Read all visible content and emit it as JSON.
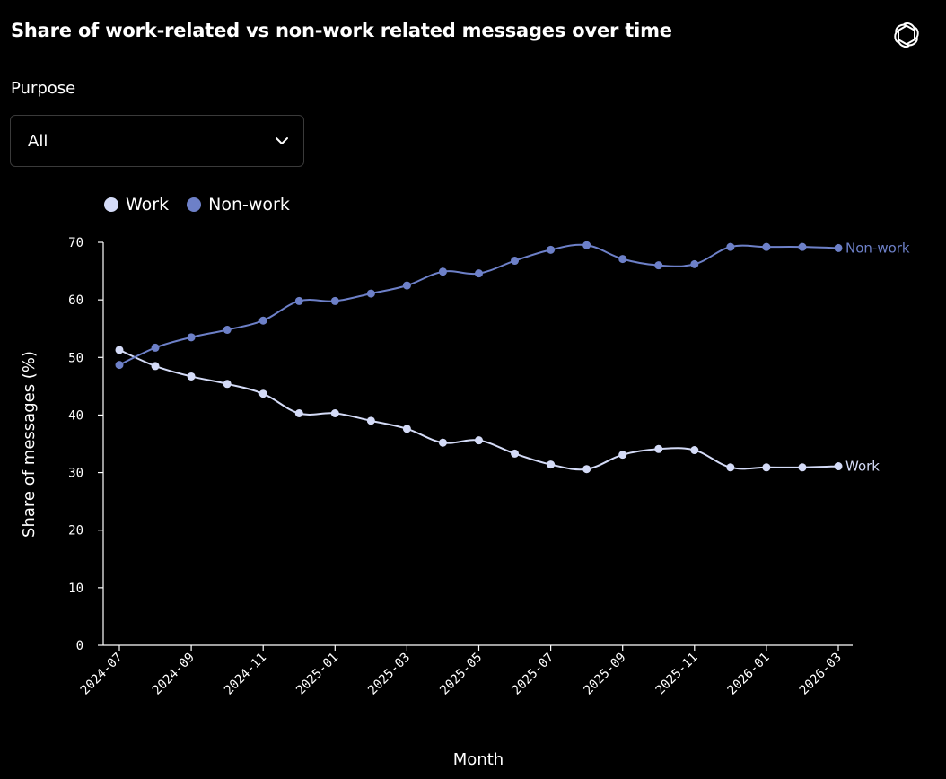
{
  "header": {
    "title": "Share of work-related vs non-work related messages over time",
    "logo_icon": "openai-logo-icon"
  },
  "filter": {
    "label": "Purpose",
    "selected": "All",
    "icon": "chevron-down-icon"
  },
  "colors": {
    "work": "#d4dbf7",
    "non_work": "#6d80c8",
    "axis": "#ffffff"
  },
  "chart_data": {
    "type": "line",
    "xlabel": "Month",
    "ylabel": "Share of messages (%)",
    "ylim": [
      0,
      70
    ],
    "yticks": [
      0,
      10,
      20,
      30,
      40,
      50,
      60,
      70
    ],
    "legend_position": "top-left",
    "grid": false,
    "x": [
      "2024-07",
      "2024-08",
      "2024-09",
      "2024-10",
      "2024-11",
      "2024-12",
      "2025-01",
      "2025-02",
      "2025-03",
      "2025-04",
      "2025-05",
      "2025-06",
      "2025-07",
      "2025-08",
      "2025-09",
      "2025-10",
      "2025-11",
      "2025-12",
      "2026-01",
      "2026-02",
      "2026-03"
    ],
    "xtick_labels": [
      "2024-07",
      "2024-09",
      "2024-11",
      "2025-01",
      "2025-03",
      "2025-05",
      "2025-07",
      "2025-09",
      "2025-11",
      "2026-01",
      "2026-03"
    ],
    "series": [
      {
        "name": "Work",
        "key": "work",
        "values": [
          51.3,
          48.5,
          46.7,
          45.4,
          43.7,
          40.3,
          40.3,
          39.0,
          37.6,
          35.2,
          35.6,
          33.3,
          31.4,
          30.6,
          33.1,
          34.1,
          33.9,
          30.9,
          30.9,
          30.9,
          31.1
        ]
      },
      {
        "name": "Non-work",
        "key": "non_work",
        "values": [
          48.7,
          51.7,
          53.5,
          54.8,
          56.4,
          59.8,
          59.8,
          61.1,
          62.5,
          64.9,
          64.6,
          66.8,
          68.7,
          69.5,
          67.1,
          66.0,
          66.2,
          69.2,
          69.2,
          69.2,
          69.0
        ]
      }
    ]
  }
}
